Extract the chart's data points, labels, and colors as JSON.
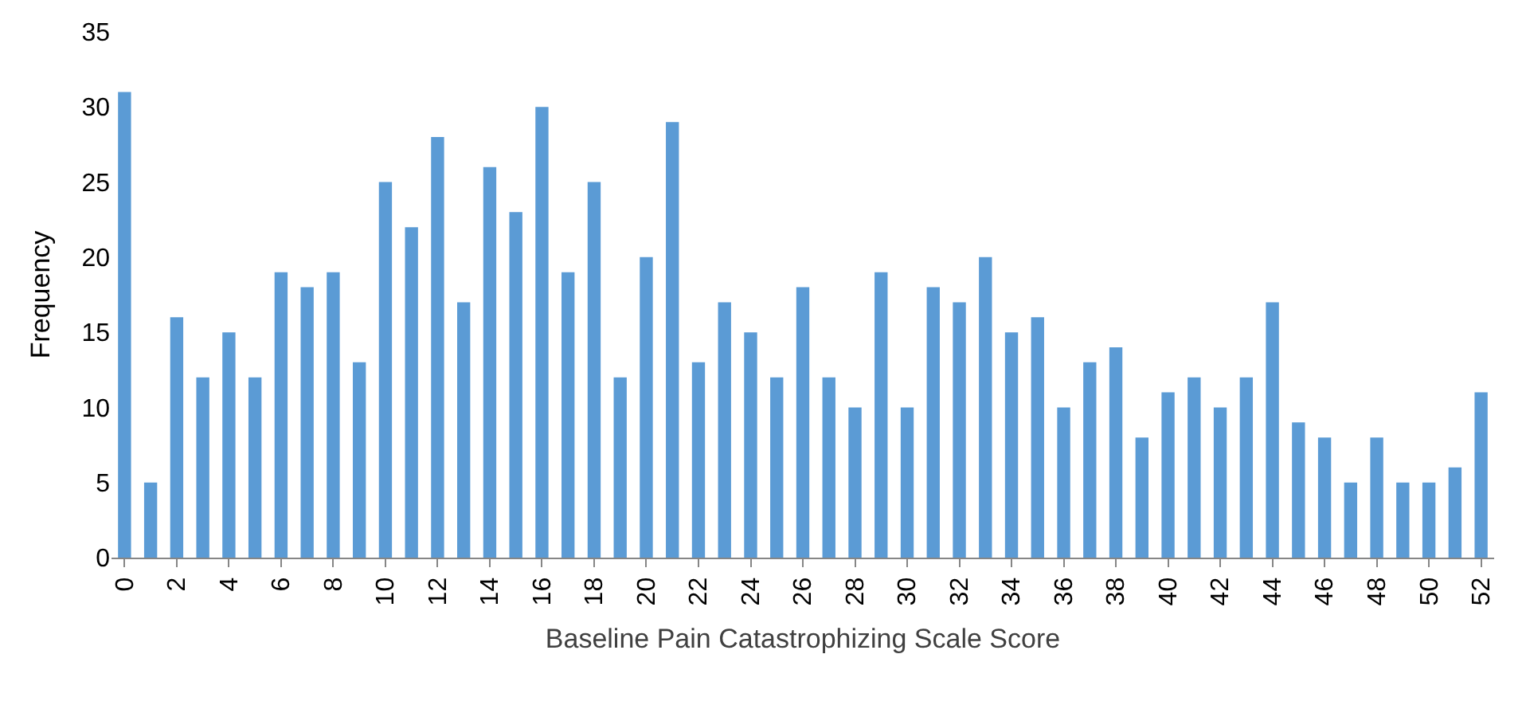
{
  "chart_data": {
    "type": "bar",
    "xlabel": "Baseline Pain Catastrophizing Scale Score",
    "ylabel": "Frequency",
    "categories": [
      "0",
      null,
      "2",
      null,
      "4",
      null,
      "6",
      null,
      "8",
      null,
      "10",
      null,
      "12",
      null,
      "14",
      null,
      "16",
      null,
      "18",
      null,
      "20",
      null,
      "22",
      null,
      "24",
      null,
      "26",
      null,
      "28",
      null,
      "30",
      null,
      "32",
      null,
      "34",
      null,
      "36",
      null,
      "38",
      null,
      "40",
      null,
      "42",
      null,
      "44",
      null,
      "46",
      null,
      "48",
      null,
      "50",
      null,
      "52"
    ],
    "values": [
      31,
      5,
      16,
      12,
      15,
      12,
      19,
      18,
      19,
      13,
      25,
      22,
      28,
      17,
      26,
      23,
      30,
      19,
      25,
      12,
      20,
      29,
      13,
      17,
      15,
      12,
      18,
      12,
      10,
      19,
      10,
      18,
      17,
      20,
      15,
      16,
      10,
      13,
      14,
      8,
      11,
      12,
      10,
      12,
      17,
      9,
      8,
      5,
      8,
      5,
      5,
      6,
      11
    ],
    "color": "#5b9bd5",
    "ylim": [
      0,
      35
    ],
    "yticks": [
      0,
      5,
      10,
      15,
      20,
      25,
      30,
      35
    ],
    "grid": false
  }
}
